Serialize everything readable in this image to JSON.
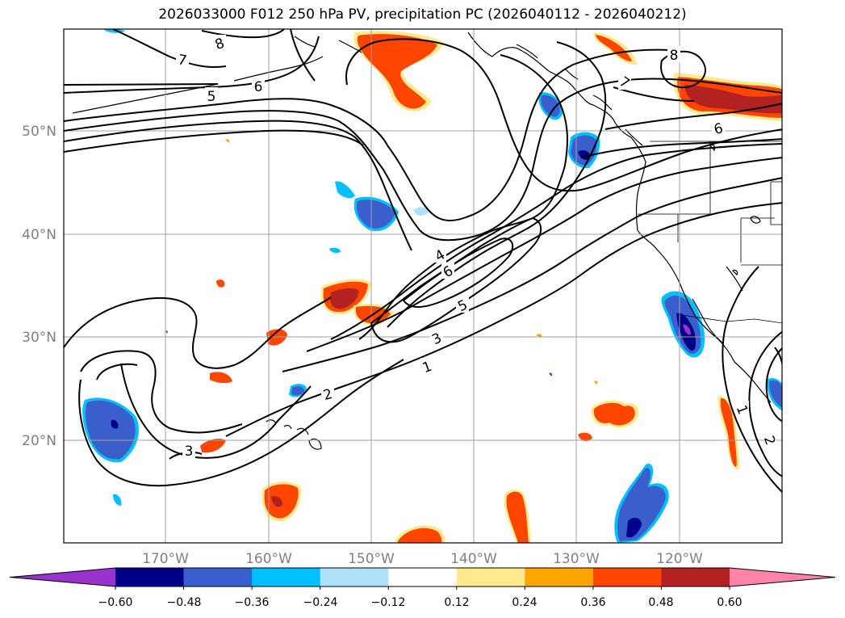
{
  "title": "2026033000 F012 250 hPa PV, precipitation PC (2026040112 - 2026040212)",
  "map": {
    "latitude_labels": [
      "50°N",
      "40°N",
      "30°N",
      "20°N"
    ],
    "longitude_labels": [
      "170°W",
      "160°W",
      "150°W",
      "140°W",
      "130°W",
      "120°W"
    ],
    "contour_labels": [
      "8",
      "7",
      "6",
      "5",
      "7",
      "8",
      "6",
      "4",
      "6",
      "5",
      "3",
      "1",
      "2",
      "3",
      "1",
      "2"
    ]
  },
  "colorbar": {
    "ticks": [
      "−0.60",
      "−0.48",
      "−0.36",
      "−0.24",
      "−0.12",
      "0.12",
      "0.24",
      "0.36",
      "0.48",
      "0.60"
    ],
    "colors": [
      "#9932cc",
      "#00008b",
      "#3a5fcd",
      "#00bfff",
      "#aee2fa",
      "#ffffff",
      "#ffe98c",
      "#ffa500",
      "#ff4500",
      "#b22222",
      "#ff82a8"
    ]
  },
  "colors": {
    "contour": "#000000",
    "grid": "#a0a0a0",
    "coast": "#000000"
  }
}
